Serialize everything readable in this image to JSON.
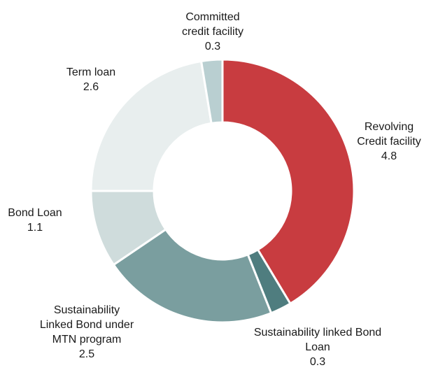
{
  "chart_data": {
    "type": "pie",
    "variant": "donut",
    "slices": [
      {
        "label": [
          "Revolving",
          "Credit facility"
        ],
        "value": 4.8,
        "value_text": "4.8",
        "color": "#c83c40"
      },
      {
        "label": [
          "Sustainability linked Bond",
          "Loan"
        ],
        "value": 0.3,
        "value_text": "0.3",
        "color": "#4f7d7f"
      },
      {
        "label": [
          "Sustainability",
          "Linked Bond under",
          "MTN program"
        ],
        "value": 2.5,
        "value_text": "2.5",
        "color": "#7a9e9f"
      },
      {
        "label": [
          "Bond Loan"
        ],
        "value": 1.1,
        "value_text": "1.1",
        "color": "#cfdcdc"
      },
      {
        "label": [
          "Term loan"
        ],
        "value": 2.6,
        "value_text": "2.6",
        "color": "#e8eeee"
      },
      {
        "label": [
          "Committed",
          "credit facility"
        ],
        "value": 0.3,
        "value_text": "0.3",
        "color": "#b9cfd1"
      }
    ]
  }
}
